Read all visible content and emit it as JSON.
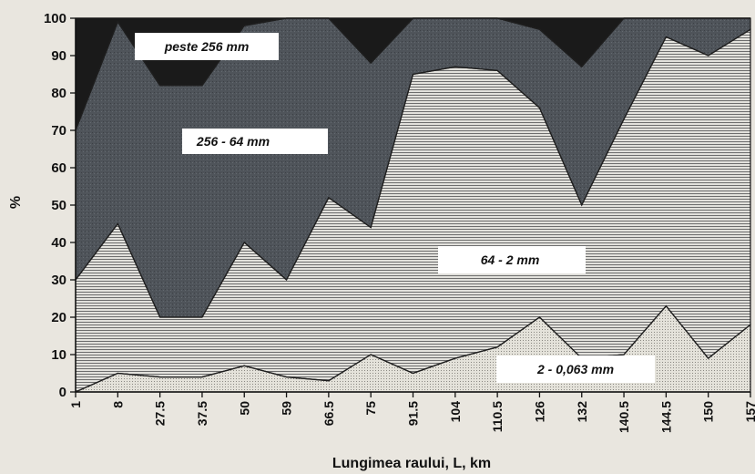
{
  "chart_data": {
    "type": "area",
    "stacked": true,
    "title": "",
    "xlabel": "Lungimea raului, L, km",
    "ylabel": "%",
    "ylim": [
      0,
      100
    ],
    "yticks": [
      0,
      10,
      20,
      30,
      40,
      50,
      60,
      70,
      80,
      90,
      100
    ],
    "categories": [
      "1",
      "8",
      "27.5",
      "37.5",
      "50",
      "59",
      "66.5",
      "75",
      "91.5",
      "104",
      "110.5",
      "126",
      "132",
      "140.5",
      "144.5",
      "150",
      "157"
    ],
    "cumulative_boundaries": [
      {
        "name": "2 - 0,063 mm",
        "values": [
          0,
          5,
          4,
          4,
          7,
          4,
          3,
          10,
          5,
          9,
          12,
          20,
          9,
          10,
          23,
          9,
          18
        ]
      },
      {
        "name": "64 - 2 mm",
        "values": [
          30,
          45,
          20,
          20,
          40,
          30,
          52,
          44,
          85,
          87,
          86,
          76,
          50,
          73,
          95,
          90,
          97
        ]
      },
      {
        "name": "256 - 64 mm",
        "values": [
          70,
          99,
          82,
          82,
          98,
          100,
          100,
          88,
          100,
          100,
          100,
          97,
          87,
          100,
          100,
          100,
          100
        ]
      },
      {
        "name": "peste 256 mm",
        "values": [
          100,
          100,
          100,
          100,
          100,
          100,
          100,
          100,
          100,
          100,
          100,
          100,
          100,
          100,
          100,
          100,
          100
        ]
      }
    ],
    "legend": "labels inside bands",
    "grid": false,
    "colors": {
      "peste_256": "#1a1a1a",
      "256_64": "#4f545a",
      "64_2": "#c9c9c7",
      "2_0063": "#dcdad3",
      "below": "#cfcfcf",
      "label_box": "#ffffff"
    }
  }
}
